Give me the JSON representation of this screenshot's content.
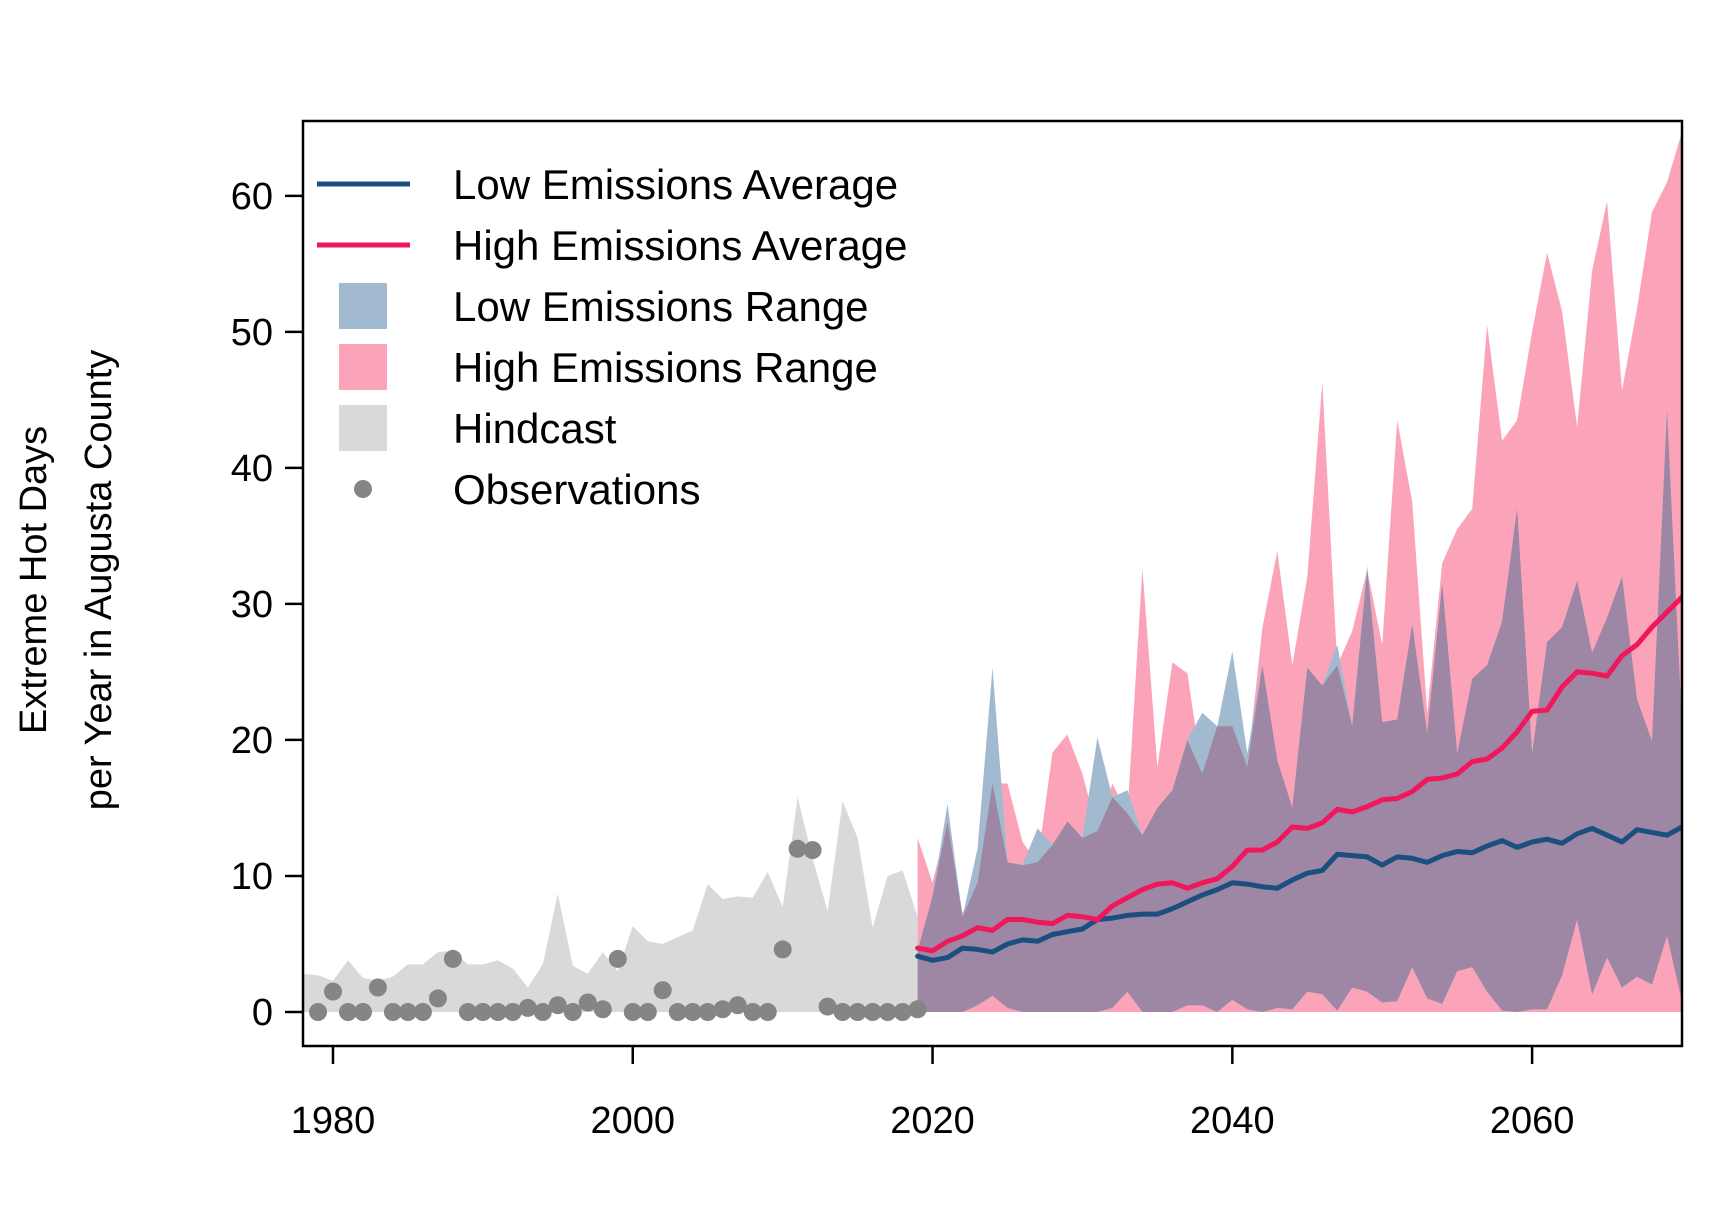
{
  "chart_data": {
    "type": "line",
    "title": "",
    "xlabel": "",
    "ylabel_lines": [
      "Extreme Hot Days",
      "per Year in Augusta County"
    ],
    "xlim": [
      1978,
      2070
    ],
    "ylim": [
      -2.5,
      65.5
    ],
    "x_ticks": [
      1980,
      2000,
      2020,
      2040,
      2060
    ],
    "y_ticks": [
      0,
      10,
      20,
      30,
      40,
      50,
      60
    ],
    "grid": false,
    "legend_position": "top-left",
    "colors": {
      "low_avg": "#1b4f7f",
      "high_avg": "#f0185a",
      "low_range": "#a1bad0",
      "high_range": "#fba4b9",
      "overlap": "#9e86a5",
      "hindcast": "#d9d9d9",
      "observations": "#858585"
    },
    "legend": [
      {
        "label": "Low Emissions Average",
        "kind": "line",
        "key": "low_avg"
      },
      {
        "label": "High Emissions Average",
        "kind": "line",
        "key": "high_avg"
      },
      {
        "label": "Low Emissions Range",
        "kind": "box",
        "key": "low_range"
      },
      {
        "label": "High Emissions Range",
        "kind": "box",
        "key": "high_range"
      },
      {
        "label": "Hindcast",
        "kind": "box",
        "key": "hindcast"
      },
      {
        "label": "Observations",
        "kind": "dot",
        "key": "observations"
      }
    ],
    "hindcast": {
      "x": [
        1978,
        1979,
        1980,
        1981,
        1982,
        1983,
        1984,
        1985,
        1986,
        1987,
        1988,
        1989,
        1990,
        1991,
        1992,
        1993,
        1994,
        1995,
        1996,
        1997,
        1998,
        1999,
        2000,
        2001,
        2002,
        2003,
        2004,
        2005,
        2006,
        2007,
        2008,
        2009,
        2010,
        2011,
        2012,
        2013,
        2014,
        2015,
        2016,
        2017,
        2018,
        2019
      ],
      "upper": [
        2.8,
        2.7,
        2.3,
        3.8,
        2.5,
        2.3,
        2.6,
        3.5,
        3.5,
        4.4,
        4.5,
        3.5,
        3.5,
        3.8,
        3.2,
        1.8,
        3.5,
        8.7,
        3.4,
        2.8,
        4.4,
        3.0,
        6.3,
        5.2,
        5.0,
        5.5,
        6.0,
        9.4,
        8.3,
        8.5,
        8.4,
        10.3,
        7.7,
        15.8,
        11.3,
        7.4,
        15.5,
        12.8,
        6.2,
        10.0,
        10.4,
        7.0
      ],
      "lower": [
        0,
        0,
        0,
        0,
        0,
        0,
        0,
        0,
        0,
        0,
        0,
        0,
        0,
        0,
        0,
        0,
        0,
        0,
        0,
        0,
        0,
        0,
        0,
        0,
        0,
        0,
        0,
        0,
        0,
        0,
        0,
        0,
        0,
        0,
        0,
        0,
        0,
        0,
        0,
        0,
        0,
        0
      ]
    },
    "observations": {
      "x": [
        1979,
        1980,
        1981,
        1982,
        1983,
        1984,
        1985,
        1986,
        1987,
        1988,
        1989,
        1990,
        1991,
        1992,
        1993,
        1994,
        1995,
        1996,
        1997,
        1998,
        1999,
        2000,
        2001,
        2002,
        2003,
        2004,
        2005,
        2006,
        2007,
        2008,
        2009,
        2010,
        2011,
        2012,
        2013,
        2014,
        2015,
        2016,
        2017,
        2018,
        2019
      ],
      "y": [
        0,
        1.5,
        0,
        0,
        1.8,
        0,
        0,
        0,
        1.0,
        3.9,
        0,
        0,
        0,
        0,
        0.3,
        0,
        0.5,
        0,
        0.7,
        0.2,
        3.9,
        0,
        0,
        1.6,
        0,
        0,
        0,
        0.2,
        0.5,
        0,
        0,
        4.6,
        12.0,
        11.9,
        0.4,
        0,
        0,
        0,
        0,
        0,
        0.2
      ]
    },
    "series": [
      {
        "name": "Low Emissions Range",
        "kind": "range",
        "x": [
          2019,
          2020,
          2021,
          2022,
          2023,
          2024,
          2025,
          2026,
          2027,
          2028,
          2029,
          2030,
          2031,
          2032,
          2033,
          2034,
          2035,
          2036,
          2037,
          2038,
          2039,
          2040,
          2041,
          2042,
          2043,
          2044,
          2045,
          2046,
          2047,
          2048,
          2049,
          2050,
          2051,
          2052,
          2053,
          2054,
          2055,
          2056,
          2057,
          2058,
          2059,
          2060,
          2061,
          2062,
          2063,
          2064,
          2065,
          2066,
          2067,
          2068,
          2069,
          2070
        ],
        "upper": [
          4.5,
          8.5,
          15.3,
          7.0,
          12.0,
          25.3,
          11.0,
          10.8,
          13.5,
          12.3,
          14.0,
          12.8,
          20.2,
          15.8,
          16.3,
          13.0,
          15.0,
          16.3,
          20.0,
          22.0,
          21.0,
          26.5,
          19.0,
          25.5,
          18.5,
          15.0,
          25.3,
          24.0,
          27.0,
          21.0,
          32.8,
          21.3,
          21.5,
          28.5,
          20.5,
          31.5,
          19.0,
          24.5,
          25.5,
          28.7,
          37.0,
          19.0,
          27.2,
          28.3,
          31.7,
          26.4,
          29.0,
          32.0,
          23.0,
          19.9,
          44.2,
          21.0
        ],
        "lower": [
          0,
          0,
          0,
          0,
          0.5,
          1.2,
          0.3,
          0,
          0,
          0,
          0,
          0,
          0,
          0.3,
          1.5,
          0,
          0,
          0,
          0.5,
          0.5,
          0,
          0.9,
          0.2,
          0,
          0.3,
          0.2,
          1.5,
          1.3,
          0.1,
          1.8,
          1.5,
          0.7,
          0.8,
          3.3,
          1.0,
          0.6,
          3.0,
          3.3,
          1.5,
          0.1,
          0,
          0.2,
          0.2,
          2.7,
          6.8,
          1.3,
          4.0,
          1.8,
          2.6,
          2.0,
          5.6,
          0.8
        ]
      },
      {
        "name": "High Emissions Range",
        "kind": "range",
        "x": [
          2019,
          2020,
          2021,
          2022,
          2023,
          2024,
          2025,
          2026,
          2027,
          2028,
          2029,
          2030,
          2031,
          2032,
          2033,
          2034,
          2035,
          2036,
          2037,
          2038,
          2039,
          2040,
          2041,
          2042,
          2043,
          2044,
          2045,
          2046,
          2047,
          2048,
          2049,
          2050,
          2051,
          2052,
          2053,
          2054,
          2055,
          2056,
          2057,
          2058,
          2059,
          2060,
          2061,
          2062,
          2063,
          2064,
          2065,
          2066,
          2067,
          2068,
          2069,
          2070
        ],
        "upper": [
          12.8,
          9.5,
          14.0,
          7.3,
          9.5,
          16.8,
          16.8,
          12.5,
          11.0,
          19.1,
          20.4,
          17.5,
          13.3,
          16.8,
          14.6,
          32.6,
          18.0,
          25.7,
          24.9,
          17.5,
          21.0,
          21.0,
          18.0,
          28.2,
          33.9,
          25.5,
          32.0,
          46.3,
          25.5,
          28.0,
          32.5,
          27.0,
          43.5,
          37.5,
          22.0,
          33.0,
          35.5,
          37.0,
          50.5,
          42.0,
          43.5,
          50.0,
          55.8,
          51.5,
          43.0,
          54.5,
          59.6,
          45.7,
          51.7,
          58.8,
          61.0,
          64.7
        ],
        "lower": [
          0,
          0,
          0,
          0,
          0,
          0,
          0,
          0,
          0,
          0,
          0,
          0,
          0,
          0,
          0,
          0,
          0,
          0,
          0,
          0,
          0,
          0,
          0,
          0,
          0,
          0,
          0,
          0,
          0,
          0,
          0,
          0,
          0,
          0,
          0,
          0,
          0,
          0,
          0,
          0,
          0,
          0,
          0,
          0,
          0,
          0,
          0,
          0,
          0,
          0,
          0,
          0
        ]
      },
      {
        "name": "Low Emissions Average",
        "kind": "line",
        "x": [
          2019,
          2020,
          2021,
          2022,
          2023,
          2024,
          2025,
          2026,
          2027,
          2028,
          2029,
          2030,
          2031,
          2032,
          2033,
          2034,
          2035,
          2036,
          2037,
          2038,
          2039,
          2040,
          2041,
          2042,
          2043,
          2044,
          2045,
          2046,
          2047,
          2048,
          2049,
          2050,
          2051,
          2052,
          2053,
          2054,
          2055,
          2056,
          2057,
          2058,
          2059,
          2060,
          2061,
          2062,
          2063,
          2064,
          2065,
          2066,
          2067,
          2068,
          2069,
          2070
        ],
        "y": [
          4.1,
          3.8,
          4.0,
          4.7,
          4.6,
          4.4,
          5.0,
          5.3,
          5.2,
          5.7,
          5.9,
          6.1,
          6.8,
          6.9,
          7.1,
          7.2,
          7.2,
          7.6,
          8.1,
          8.6,
          9.0,
          9.5,
          9.4,
          9.2,
          9.1,
          9.7,
          10.2,
          10.4,
          11.6,
          11.5,
          11.4,
          10.8,
          11.4,
          11.3,
          11.0,
          11.5,
          11.8,
          11.7,
          12.2,
          12.6,
          12.1,
          12.5,
          12.7,
          12.4,
          13.1,
          13.5,
          13.0,
          12.5,
          13.4,
          13.2,
          13.0,
          13.6
        ]
      },
      {
        "name": "High Emissions Average",
        "kind": "line",
        "x": [
          2019,
          2020,
          2021,
          2022,
          2023,
          2024,
          2025,
          2026,
          2027,
          2028,
          2029,
          2030,
          2031,
          2032,
          2033,
          2034,
          2035,
          2036,
          2037,
          2038,
          2039,
          2040,
          2041,
          2042,
          2043,
          2044,
          2045,
          2046,
          2047,
          2048,
          2049,
          2050,
          2051,
          2052,
          2053,
          2054,
          2055,
          2056,
          2057,
          2058,
          2059,
          2060,
          2061,
          2062,
          2063,
          2064,
          2065,
          2066,
          2067,
          2068,
          2069,
          2070
        ],
        "y": [
          4.7,
          4.5,
          5.2,
          5.6,
          6.2,
          6.0,
          6.8,
          6.8,
          6.6,
          6.5,
          7.1,
          7.0,
          6.8,
          7.8,
          8.4,
          9.0,
          9.4,
          9.5,
          9.1,
          9.5,
          9.8,
          10.7,
          11.9,
          11.9,
          12.5,
          13.6,
          13.5,
          13.9,
          14.9,
          14.7,
          15.1,
          15.6,
          15.7,
          16.2,
          17.1,
          17.2,
          17.5,
          18.4,
          18.6,
          19.4,
          20.6,
          22.1,
          22.2,
          23.9,
          25.0,
          24.9,
          24.7,
          26.2,
          27.0,
          28.3,
          29.4,
          30.5
        ]
      }
    ]
  }
}
